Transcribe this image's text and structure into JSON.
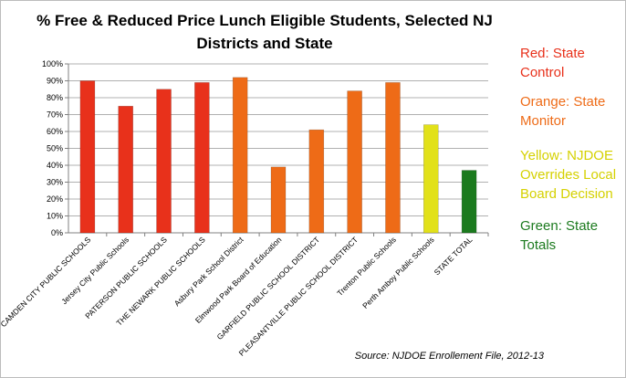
{
  "chart_data": {
    "type": "bar",
    "title": "% Free & Reduced Price Lunch Eligible Students, Selected NJ Districts and State",
    "categories": [
      "CAMDEN CITY PUBLIC SCHOOLS",
      "Jersey City Public Schools",
      "PATERSON PUBLIC SCHOOLS",
      "THE NEWARK PUBLIC SCHOOLS",
      "Asbury Park School District",
      "Elmwood Park Board of Education",
      "GARFIELD PUBLIC SCHOOL DISTRICT",
      "PLEASANTVILLE PUBLIC SCHOOL DISTRICT",
      "Trenton Public Schools",
      "Perth Amboy Public Schools",
      "STATE TOTAL"
    ],
    "values": [
      90,
      75,
      85,
      89,
      92,
      39,
      61,
      84,
      89,
      64,
      37
    ],
    "bar_groups": [
      "red",
      "red",
      "red",
      "red",
      "orange",
      "orange",
      "orange",
      "orange",
      "orange",
      "yellow",
      "green"
    ],
    "colors": {
      "red": "#e8311b",
      "orange": "#ee6b17",
      "yellow": "#e2e11a",
      "green": "#1b7a1e"
    },
    "yticks": [
      "0%",
      "10%",
      "20%",
      "30%",
      "40%",
      "50%",
      "60%",
      "70%",
      "80%",
      "90%",
      "100%"
    ],
    "ylim": [
      0,
      100
    ],
    "xlabel": "",
    "ylabel": "",
    "grid": true,
    "legend_position": "right"
  },
  "legend": [
    {
      "text": "Red: State Control",
      "color": "#e8311b"
    },
    {
      "text": "Orange: State Monitor",
      "color": "#ee6b17"
    },
    {
      "text": "Yellow: NJDOE Overrides Local Board Decision",
      "color": "#d5d100"
    },
    {
      "text": "Green: State Totals",
      "color": "#1b7a1e"
    }
  ],
  "source": "Source: NJDOE Enrollement File, 2012-13"
}
